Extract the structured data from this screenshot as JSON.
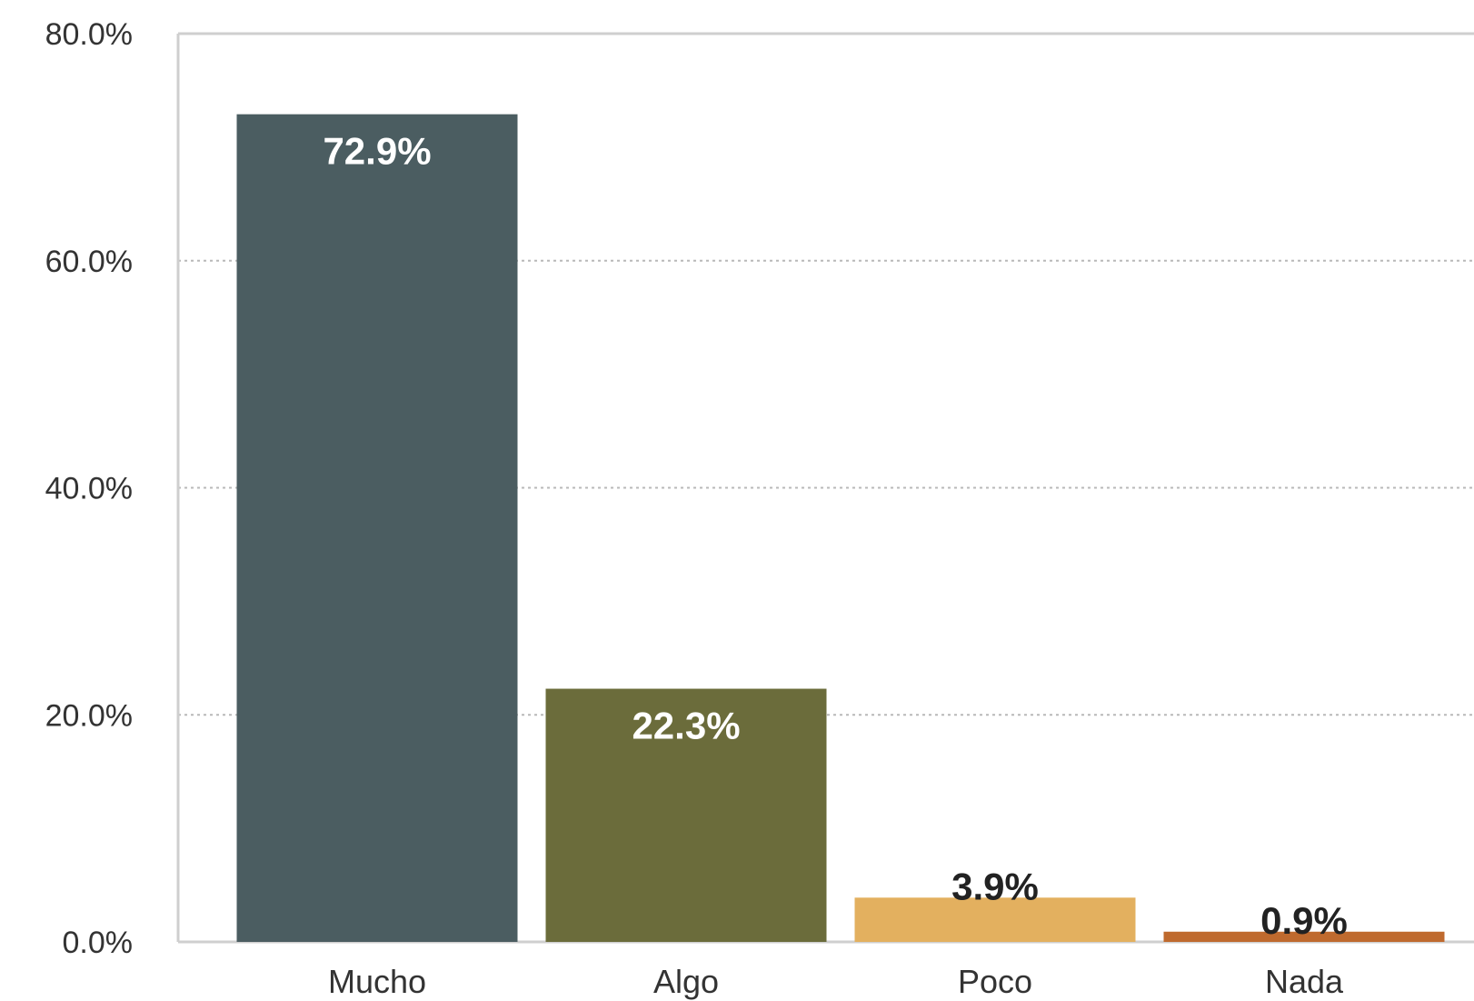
{
  "chart_data": {
    "type": "bar",
    "categories": [
      "Mucho",
      "Algo",
      "Poco",
      "Nada"
    ],
    "values": [
      72.9,
      22.3,
      3.9,
      0.9
    ],
    "value_labels": [
      "72.9%",
      "22.3%",
      "3.9%",
      "0.9%"
    ],
    "colors": [
      "#4b5d61",
      "#6b6c3b",
      "#e3b05f",
      "#bf6a2e"
    ],
    "label_colors": [
      "#ffffff",
      "#ffffff",
      "#222222",
      "#222222"
    ],
    "ylim": [
      0,
      80
    ],
    "y_ticks": [
      0,
      20,
      40,
      60,
      80
    ],
    "y_tick_labels": [
      "0.0%",
      "20.0%",
      "40.0%",
      "60.0%",
      "80.0%"
    ],
    "grid": true,
    "title": "",
    "xlabel": "",
    "ylabel": ""
  }
}
